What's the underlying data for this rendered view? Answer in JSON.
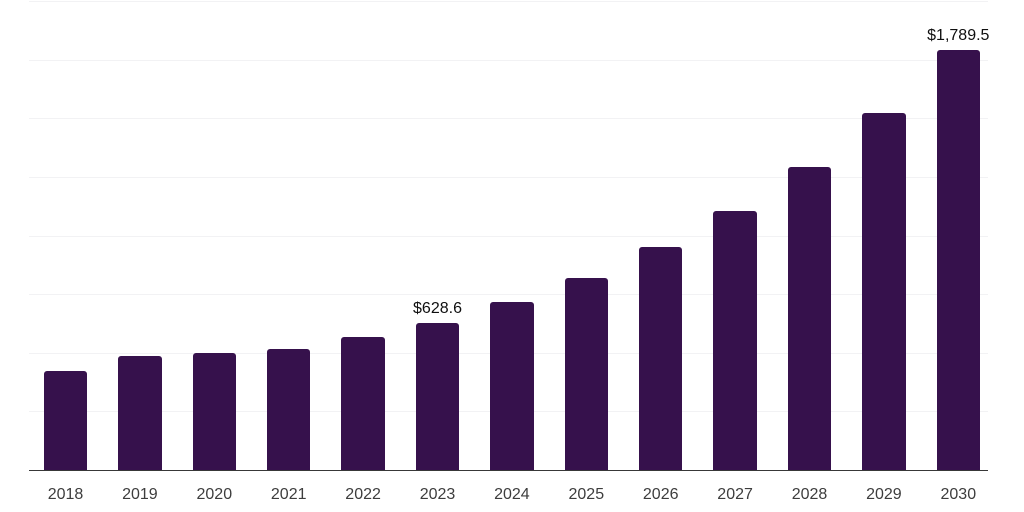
{
  "chart_data": {
    "type": "bar",
    "title": "",
    "xlabel": "",
    "ylabel": "",
    "categories": [
      "2018",
      "2019",
      "2020",
      "2021",
      "2022",
      "2023",
      "2024",
      "2025",
      "2026",
      "2027",
      "2028",
      "2029",
      "2030"
    ],
    "values": [
      421,
      486,
      499,
      517,
      566,
      628.6,
      715,
      819,
      950,
      1106,
      1292,
      1521,
      1789.5
    ],
    "value_labels": {
      "2023": "$628.6",
      "2030": "$1,789.5"
    },
    "ylim": [
      0,
      2000
    ],
    "grid_interval": 250,
    "grid": true,
    "legend_position": "none",
    "colors": {
      "bar": "#36114C",
      "gridline": "#f2f2f4",
      "axis": "#383838",
      "x_label": "#3d3d3d",
      "value_label": "#0f0f0f",
      "background": "#ffffff"
    }
  }
}
